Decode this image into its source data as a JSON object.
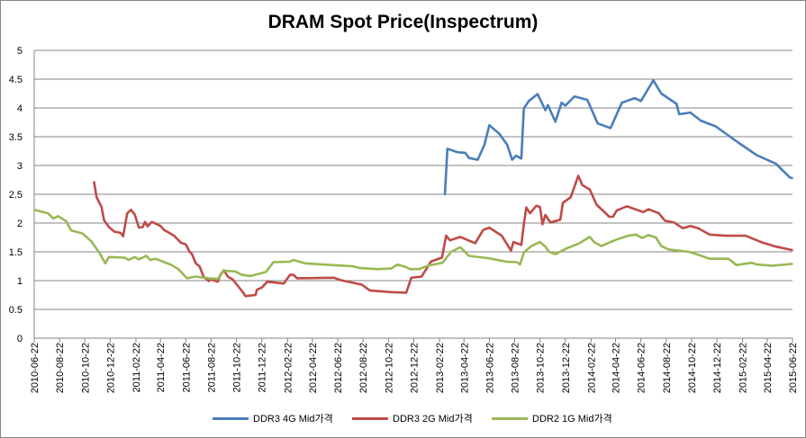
{
  "chart_data": {
    "type": "line",
    "title": "DRAM Spot Price(Inspectrum)",
    "xlabel": "",
    "ylabel": "",
    "ylim": [
      0,
      5
    ],
    "yticks": [
      "0",
      "0.5",
      "1",
      "1.5",
      "2",
      "2.5",
      "3",
      "3.5",
      "4",
      "4.5",
      "5"
    ],
    "xlim": [
      "2010-06-22",
      "2015-06-22"
    ],
    "xticks": [
      "2010-06-22",
      "2010-08-22",
      "2010-10-22",
      "2010-12-22",
      "2011-02-22",
      "2011-04-22",
      "2011-06-22",
      "2011-08-22",
      "2011-10-22",
      "2011-12-22",
      "2012-02-22",
      "2012-04-22",
      "2012-06-22",
      "2012-08-22",
      "2012-10-22",
      "2012-12-22",
      "2013-02-22",
      "2013-04-22",
      "2013-06-22",
      "2013-08-22",
      "2013-10-22",
      "2013-12-22",
      "2014-02-22",
      "2014-04-22",
      "2014-06-22",
      "2014-08-22",
      "2014-10-22",
      "2014-12-22",
      "2015-02-22",
      "2015-04-22",
      "2015-06-22"
    ],
    "grid": true,
    "legend": "bottom",
    "series": [
      {
        "name": "DDR3 4G Mid가격",
        "color": "#4a7ebb",
        "points": [
          [
            "2013-03-07",
            2.49
          ],
          [
            "2013-03-13",
            3.29
          ],
          [
            "2013-04-07",
            3.23
          ],
          [
            "2013-04-25",
            3.22
          ],
          [
            "2013-05-04",
            3.13
          ],
          [
            "2013-05-25",
            3.1
          ],
          [
            "2013-06-10",
            3.36
          ],
          [
            "2013-06-22",
            3.7
          ],
          [
            "2013-07-16",
            3.55
          ],
          [
            "2013-08-04",
            3.36
          ],
          [
            "2013-08-16",
            3.1
          ],
          [
            "2013-08-25",
            3.17
          ],
          [
            "2013-09-07",
            3.12
          ],
          [
            "2013-09-13",
            3.99
          ],
          [
            "2013-09-25",
            4.12
          ],
          [
            "2013-10-16",
            4.24
          ],
          [
            "2013-11-04",
            3.96
          ],
          [
            "2013-11-10",
            4.05
          ],
          [
            "2013-11-28",
            3.76
          ],
          [
            "2013-12-13",
            4.09
          ],
          [
            "2013-12-22",
            4.04
          ],
          [
            "2014-01-13",
            4.2
          ],
          [
            "2014-02-13",
            4.14
          ],
          [
            "2014-03-10",
            3.73
          ],
          [
            "2014-04-10",
            3.65
          ],
          [
            "2014-05-07",
            4.09
          ],
          [
            "2014-06-07",
            4.17
          ],
          [
            "2014-06-22",
            4.12
          ],
          [
            "2014-07-22",
            4.48
          ],
          [
            "2014-08-10",
            4.25
          ],
          [
            "2014-09-16",
            4.07
          ],
          [
            "2014-09-22",
            3.89
          ],
          [
            "2014-10-19",
            3.92
          ],
          [
            "2014-11-13",
            3.78
          ],
          [
            "2014-12-19",
            3.68
          ],
          [
            "2015-02-13",
            3.39
          ],
          [
            "2015-03-28",
            3.18
          ],
          [
            "2015-05-13",
            3.03
          ],
          [
            "2015-06-16",
            2.79
          ],
          [
            "2015-06-22",
            2.78
          ]
        ]
      },
      {
        "name": "DDR3 2G Mid가격",
        "color": "#be4b48",
        "points": [
          [
            "2010-11-13",
            2.72
          ],
          [
            "2010-11-19",
            2.45
          ],
          [
            "2010-12-01",
            2.28
          ],
          [
            "2010-12-07",
            2.05
          ],
          [
            "2010-12-19",
            1.93
          ],
          [
            "2011-01-01",
            1.85
          ],
          [
            "2011-01-16",
            1.83
          ],
          [
            "2011-01-22",
            1.77
          ],
          [
            "2011-02-01",
            2.17
          ],
          [
            "2011-02-10",
            2.23
          ],
          [
            "2011-02-19",
            2.15
          ],
          [
            "2011-03-01",
            1.92
          ],
          [
            "2011-03-10",
            1.93
          ],
          [
            "2011-03-16",
            2.02
          ],
          [
            "2011-03-22",
            1.94
          ],
          [
            "2011-04-01",
            2.02
          ],
          [
            "2011-04-22",
            1.95
          ],
          [
            "2011-05-01",
            1.88
          ],
          [
            "2011-05-25",
            1.78
          ],
          [
            "2011-06-10",
            1.66
          ],
          [
            "2011-06-22",
            1.63
          ],
          [
            "2011-07-01",
            1.5
          ],
          [
            "2011-07-07",
            1.46
          ],
          [
            "2011-07-16",
            1.3
          ],
          [
            "2011-07-25",
            1.25
          ],
          [
            "2011-08-04",
            1.07
          ],
          [
            "2011-08-16",
            0.99
          ],
          [
            "2011-08-22",
            1.02
          ],
          [
            "2011-09-07",
            0.98
          ],
          [
            "2011-09-13",
            1.1
          ],
          [
            "2011-09-22",
            1.18
          ],
          [
            "2011-10-01",
            1.07
          ],
          [
            "2011-10-13",
            1.02
          ],
          [
            "2011-11-04",
            0.82
          ],
          [
            "2011-11-13",
            0.73
          ],
          [
            "2011-11-25",
            0.74
          ],
          [
            "2011-12-07",
            0.75
          ],
          [
            "2011-12-10",
            0.84
          ],
          [
            "2011-12-22",
            0.88
          ],
          [
            "2012-01-04",
            0.98
          ],
          [
            "2012-02-13",
            0.95
          ],
          [
            "2012-02-28",
            1.1
          ],
          [
            "2012-03-07",
            1.1
          ],
          [
            "2012-03-16",
            1.04
          ],
          [
            "2012-06-13",
            1.05
          ],
          [
            "2012-06-28",
            1.01
          ],
          [
            "2012-08-19",
            0.93
          ],
          [
            "2012-09-07",
            0.83
          ],
          [
            "2012-10-28",
            0.8
          ],
          [
            "2012-12-04",
            0.79
          ],
          [
            "2012-12-16",
            1.05
          ],
          [
            "2013-01-10",
            1.07
          ],
          [
            "2013-02-01",
            1.33
          ],
          [
            "2013-02-28",
            1.4
          ],
          [
            "2013-03-10",
            1.78
          ],
          [
            "2013-03-19",
            1.7
          ],
          [
            "2013-04-13",
            1.76
          ],
          [
            "2013-05-19",
            1.65
          ],
          [
            "2013-06-07",
            1.88
          ],
          [
            "2013-06-22",
            1.92
          ],
          [
            "2013-07-22",
            1.78
          ],
          [
            "2013-08-13",
            1.52
          ],
          [
            "2013-08-19",
            1.67
          ],
          [
            "2013-09-07",
            1.62
          ],
          [
            "2013-09-13",
            1.98
          ],
          [
            "2013-09-19",
            2.27
          ],
          [
            "2013-09-28",
            2.17
          ],
          [
            "2013-10-13",
            2.3
          ],
          [
            "2013-10-22",
            2.28
          ],
          [
            "2013-10-28",
            1.98
          ],
          [
            "2013-11-04",
            2.14
          ],
          [
            "2013-11-16",
            2.01
          ],
          [
            "2013-12-10",
            2.06
          ],
          [
            "2013-12-16",
            2.35
          ],
          [
            "2014-01-04",
            2.45
          ],
          [
            "2014-01-22",
            2.82
          ],
          [
            "2014-02-01",
            2.66
          ],
          [
            "2014-02-19",
            2.58
          ],
          [
            "2014-03-07",
            2.32
          ],
          [
            "2014-04-07",
            2.11
          ],
          [
            "2014-04-16",
            2.11
          ],
          [
            "2014-04-25",
            2.22
          ],
          [
            "2014-05-19",
            2.29
          ],
          [
            "2014-06-28",
            2.19
          ],
          [
            "2014-07-10",
            2.24
          ],
          [
            "2014-08-04",
            2.17
          ],
          [
            "2014-08-19",
            2.04
          ],
          [
            "2014-09-10",
            2.01
          ],
          [
            "2014-10-01",
            1.91
          ],
          [
            "2014-10-19",
            1.95
          ],
          [
            "2014-11-07",
            1.91
          ],
          [
            "2014-12-04",
            1.8
          ],
          [
            "2015-01-10",
            1.78
          ],
          [
            "2015-03-01",
            1.78
          ],
          [
            "2015-04-07",
            1.67
          ],
          [
            "2015-05-13",
            1.59
          ],
          [
            "2015-06-22",
            1.53
          ]
        ]
      },
      {
        "name": "DDR2 1G Mid가격",
        "color": "#98b954",
        "points": [
          [
            "2010-06-22",
            2.23
          ],
          [
            "2010-07-25",
            2.17
          ],
          [
            "2010-08-07",
            2.08
          ],
          [
            "2010-08-19",
            2.12
          ],
          [
            "2010-09-07",
            2.03
          ],
          [
            "2010-09-19",
            1.87
          ],
          [
            "2010-10-16",
            1.82
          ],
          [
            "2010-11-07",
            1.68
          ],
          [
            "2010-11-28",
            1.46
          ],
          [
            "2010-12-10",
            1.3
          ],
          [
            "2010-12-19",
            1.41
          ],
          [
            "2011-01-25",
            1.4
          ],
          [
            "2011-02-04",
            1.36
          ],
          [
            "2011-02-19",
            1.41
          ],
          [
            "2011-03-01",
            1.37
          ],
          [
            "2011-03-19",
            1.43
          ],
          [
            "2011-03-28",
            1.36
          ],
          [
            "2011-04-10",
            1.38
          ],
          [
            "2011-04-28",
            1.33
          ],
          [
            "2011-05-19",
            1.27
          ],
          [
            "2011-06-04",
            1.2
          ],
          [
            "2011-06-25",
            1.04
          ],
          [
            "2011-07-16",
            1.07
          ],
          [
            "2011-08-16",
            1.04
          ],
          [
            "2011-09-07",
            1.03
          ],
          [
            "2011-09-22",
            1.17
          ],
          [
            "2011-10-19",
            1.16
          ],
          [
            "2011-11-04",
            1.1
          ],
          [
            "2011-11-25",
            1.08
          ],
          [
            "2012-01-01",
            1.15
          ],
          [
            "2012-01-19",
            1.32
          ],
          [
            "2012-02-28",
            1.33
          ],
          [
            "2012-03-07",
            1.36
          ],
          [
            "2012-04-04",
            1.3
          ],
          [
            "2012-06-07",
            1.27
          ],
          [
            "2012-07-28",
            1.25
          ],
          [
            "2012-08-13",
            1.22
          ],
          [
            "2012-09-25",
            1.2
          ],
          [
            "2012-10-28",
            1.21
          ],
          [
            "2012-11-13",
            1.28
          ],
          [
            "2012-12-01",
            1.24
          ],
          [
            "2012-12-13",
            1.2
          ],
          [
            "2013-01-04",
            1.2
          ],
          [
            "2013-01-25",
            1.26
          ],
          [
            "2013-03-01",
            1.31
          ],
          [
            "2013-03-22",
            1.5
          ],
          [
            "2013-04-13",
            1.58
          ],
          [
            "2013-05-04",
            1.43
          ],
          [
            "2013-06-19",
            1.39
          ],
          [
            "2013-08-01",
            1.33
          ],
          [
            "2013-08-28",
            1.32
          ],
          [
            "2013-09-04",
            1.28
          ],
          [
            "2013-09-13",
            1.49
          ],
          [
            "2013-10-01",
            1.6
          ],
          [
            "2013-10-22",
            1.67
          ],
          [
            "2013-11-04",
            1.59
          ],
          [
            "2013-11-13",
            1.5
          ],
          [
            "2013-11-28",
            1.46
          ],
          [
            "2013-12-25",
            1.56
          ],
          [
            "2014-01-25",
            1.65
          ],
          [
            "2014-02-19",
            1.76
          ],
          [
            "2014-03-01",
            1.67
          ],
          [
            "2014-03-19",
            1.6
          ],
          [
            "2014-04-16",
            1.69
          ],
          [
            "2014-05-01",
            1.73
          ],
          [
            "2014-05-22",
            1.78
          ],
          [
            "2014-06-10",
            1.8
          ],
          [
            "2014-06-25",
            1.74
          ],
          [
            "2014-07-10",
            1.79
          ],
          [
            "2014-07-28",
            1.75
          ],
          [
            "2014-08-10",
            1.6
          ],
          [
            "2014-08-28",
            1.54
          ],
          [
            "2014-10-16",
            1.5
          ],
          [
            "2014-11-07",
            1.45
          ],
          [
            "2014-12-04",
            1.38
          ],
          [
            "2015-01-19",
            1.38
          ],
          [
            "2015-02-07",
            1.27
          ],
          [
            "2015-03-16",
            1.31
          ],
          [
            "2015-03-28",
            1.28
          ],
          [
            "2015-05-04",
            1.26
          ],
          [
            "2015-06-22",
            1.29
          ]
        ]
      }
    ]
  }
}
